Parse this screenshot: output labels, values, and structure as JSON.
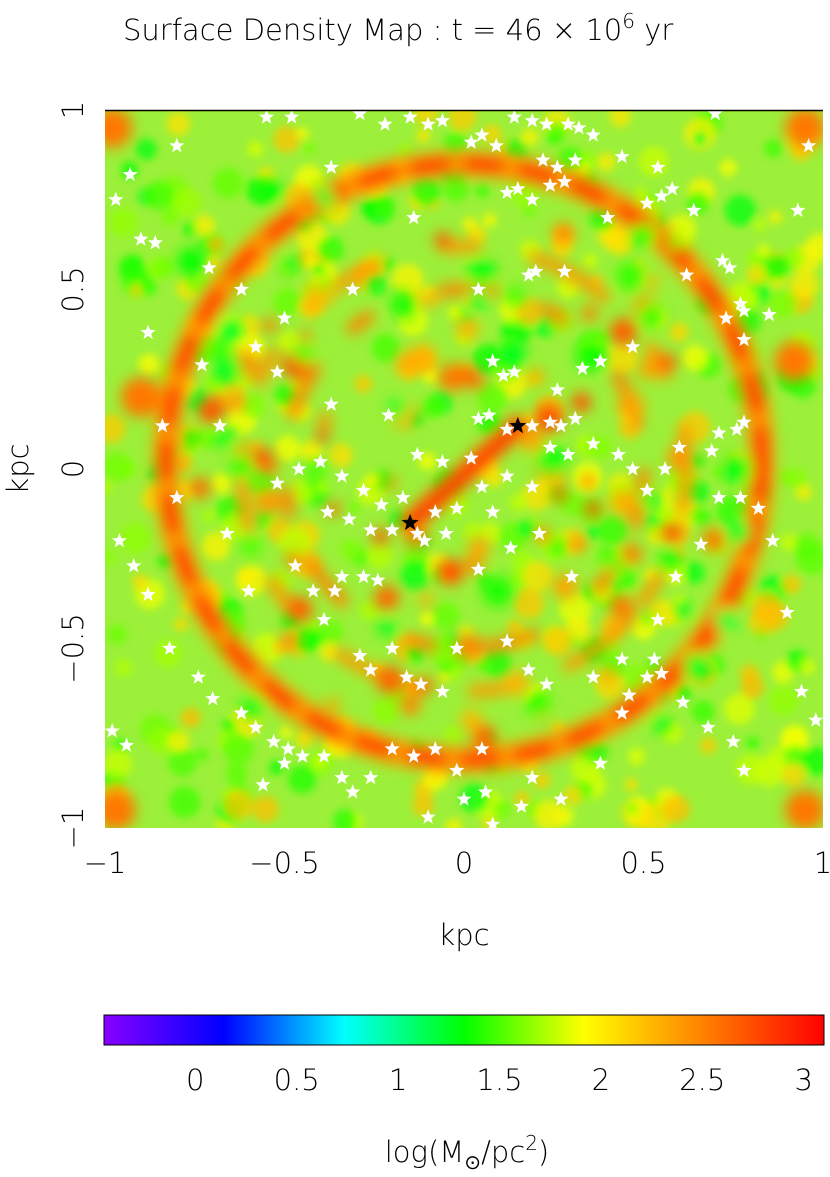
{
  "chart_data": {
    "type": "heatmap",
    "title": {
      "prefix": "Surface Density Map : t = 46 × 10",
      "exponent": "6",
      "suffix": " yr"
    },
    "xlabel": "kpc",
    "ylabel": "kpc",
    "xlim": [
      -1,
      1
    ],
    "ylim": [
      -1,
      1
    ],
    "x_ticks": [
      -1,
      -0.5,
      0,
      0.5,
      1
    ],
    "x_tick_labels": [
      "−1",
      "−0.5",
      "0",
      "0.5",
      "1"
    ],
    "y_ticks": [
      -1,
      -0.5,
      0,
      0.5,
      1
    ],
    "y_tick_labels": [
      "−1",
      "−0.5",
      "0",
      "0.5",
      "1"
    ],
    "grid": false,
    "colorbar": {
      "range": [
        -0.45,
        3.1
      ],
      "ticks": [
        0,
        0.5,
        1,
        1.5,
        2,
        2.5,
        3
      ],
      "tick_labels": [
        "0",
        "0.5",
        "1",
        "1.5",
        "2",
        "2.5",
        "3"
      ],
      "label": {
        "prefix": "log(M",
        "subscript": "⊙",
        "middle": "/pc",
        "superscript": "2",
        "suffix": ")"
      },
      "colormap": [
        "#8800ff",
        "#0000ff",
        "#00ffff",
        "#00ff00",
        "#ffff00",
        "#ff8000",
        "#ff0000"
      ]
    },
    "field_structures": {
      "background_level": 1.8,
      "outer_ring": {
        "center": [
          0,
          0.02
        ],
        "radius": 0.83,
        "peak_level": 3.0
      },
      "inner_arms": [
        {
          "center": [
            0,
            0
          ],
          "radius": 0.5,
          "level": 2.5
        },
        {
          "center": [
            0,
            0
          ],
          "radius": 0.62,
          "level": 2.4
        }
      ],
      "central_bar": {
        "from": [
          -0.15,
          -0.15
        ],
        "to": [
          0.15,
          0.12
        ],
        "level": 2.9
      }
    },
    "black_stars": [
      {
        "x": -0.15,
        "y": -0.15
      },
      {
        "x": 0.15,
        "y": 0.12
      }
    ],
    "white_stars": [
      [
        -0.93,
        0.82
      ],
      [
        -0.86,
        0.63
      ],
      [
        -0.8,
        0.9
      ],
      [
        -0.71,
        0.56
      ],
      [
        -0.62,
        0.5
      ],
      [
        -0.58,
        0.34
      ],
      [
        -0.37,
        0.84
      ],
      [
        -0.31,
        0.5
      ],
      [
        -0.29,
        0.99
      ],
      [
        -0.22,
        0.96
      ],
      [
        -0.15,
        0.98
      ],
      [
        -0.1,
        0.96
      ],
      [
        -0.06,
        0.97
      ],
      [
        0.02,
        0.91
      ],
      [
        0.05,
        0.93
      ],
      [
        0.09,
        0.9
      ],
      [
        0.14,
        0.98
      ],
      [
        0.19,
        0.97
      ],
      [
        0.23,
        0.96
      ],
      [
        0.29,
        0.96
      ],
      [
        0.32,
        0.95
      ],
      [
        0.36,
        0.93
      ],
      [
        0.44,
        0.87
      ],
      [
        0.54,
        0.84
      ],
      [
        0.22,
        0.86
      ],
      [
        0.26,
        0.84
      ],
      [
        0.31,
        0.86
      ],
      [
        0.24,
        0.79
      ],
      [
        0.28,
        0.8
      ],
      [
        0.19,
        0.75
      ],
      [
        0.12,
        0.77
      ],
      [
        0.15,
        0.78
      ],
      [
        0.51,
        0.74
      ],
      [
        0.55,
        0.76
      ],
      [
        0.58,
        0.78
      ],
      [
        0.64,
        0.72
      ],
      [
        0.72,
        0.58
      ],
      [
        0.74,
        0.56
      ],
      [
        0.77,
        0.46
      ],
      [
        0.78,
        0.44
      ],
      [
        0.62,
        0.54
      ],
      [
        0.18,
        0.54
      ],
      [
        0.2,
        0.55
      ],
      [
        0.08,
        0.3
      ],
      [
        0.11,
        0.26
      ],
      [
        0.14,
        0.27
      ],
      [
        0.04,
        0.14
      ],
      [
        0.07,
        0.15
      ],
      [
        0.12,
        0.11
      ],
      [
        0.19,
        0.12
      ],
      [
        0.24,
        0.13
      ],
      [
        0.27,
        0.12
      ],
      [
        0.31,
        0.14
      ],
      [
        0.24,
        0.06
      ],
      [
        0.29,
        0.04
      ],
      [
        0.36,
        0.07
      ],
      [
        0.43,
        0.04
      ],
      [
        0.47,
        0.0
      ],
      [
        0.51,
        -0.06
      ],
      [
        0.56,
        0.0
      ],
      [
        0.6,
        0.06
      ],
      [
        0.69,
        0.05
      ],
      [
        0.71,
        0.1
      ],
      [
        0.76,
        0.11
      ],
      [
        0.78,
        0.13
      ],
      [
        0.71,
        -0.08
      ],
      [
        0.77,
        -0.08
      ],
      [
        0.82,
        -0.11
      ],
      [
        0.66,
        -0.21
      ],
      [
        0.59,
        -0.3
      ],
      [
        0.54,
        -0.42
      ],
      [
        0.53,
        -0.53
      ],
      [
        0.55,
        -0.57
      ],
      [
        0.61,
        -0.65
      ],
      [
        0.68,
        -0.72
      ],
      [
        0.75,
        -0.76
      ],
      [
        0.78,
        -0.84
      ],
      [
        0.51,
        -0.58
      ],
      [
        0.46,
        -0.63
      ],
      [
        0.44,
        -0.68
      ],
      [
        0.38,
        -0.82
      ],
      [
        0.27,
        -0.92
      ],
      [
        0.19,
        -0.86
      ],
      [
        0.16,
        -0.94
      ],
      [
        0.06,
        -0.9
      ],
      [
        0.0,
        -0.92
      ],
      [
        -0.02,
        -0.84
      ],
      [
        -0.08,
        -0.78
      ],
      [
        -0.14,
        -0.8
      ],
      [
        -0.2,
        -0.78
      ],
      [
        -0.26,
        -0.86
      ],
      [
        -0.31,
        -0.9
      ],
      [
        -0.34,
        -0.86
      ],
      [
        -0.39,
        -0.8
      ],
      [
        -0.45,
        -0.8
      ],
      [
        -0.49,
        -0.78
      ],
      [
        -0.53,
        -0.76
      ],
      [
        -0.58,
        -0.72
      ],
      [
        -0.62,
        -0.68
      ],
      [
        -0.7,
        -0.64
      ],
      [
        -0.74,
        -0.58
      ],
      [
        -0.82,
        -0.5
      ],
      [
        -0.88,
        -0.35
      ],
      [
        -0.92,
        -0.27
      ],
      [
        -0.96,
        -0.2
      ],
      [
        -0.98,
        -0.73
      ],
      [
        -0.94,
        -0.77
      ],
      [
        -0.56,
        -0.88
      ],
      [
        -0.5,
        -0.82
      ],
      [
        -0.6,
        -0.34
      ],
      [
        -0.47,
        -0.27
      ],
      [
        -0.42,
        -0.34
      ],
      [
        -0.39,
        -0.42
      ],
      [
        -0.29,
        -0.52
      ],
      [
        -0.26,
        -0.56
      ],
      [
        -0.2,
        -0.5
      ],
      [
        -0.16,
        -0.58
      ],
      [
        -0.12,
        -0.6
      ],
      [
        -0.06,
        -0.62
      ],
      [
        -0.02,
        -0.5
      ],
      [
        0.12,
        -0.48
      ],
      [
        0.18,
        -0.56
      ],
      [
        0.23,
        -0.6
      ],
      [
        0.36,
        -0.58
      ],
      [
        0.44,
        -0.53
      ],
      [
        0.04,
        -0.28
      ],
      [
        0.13,
        -0.22
      ],
      [
        0.21,
        -0.18
      ],
      [
        0.3,
        -0.3
      ],
      [
        -0.13,
        -0.18
      ],
      [
        -0.2,
        -0.17
      ],
      [
        -0.26,
        -0.17
      ],
      [
        -0.32,
        -0.14
      ],
      [
        -0.38,
        -0.12
      ],
      [
        -0.28,
        -0.06
      ],
      [
        -0.34,
        -0.02
      ],
      [
        -0.4,
        0.02
      ],
      [
        -0.46,
        0.0
      ],
      [
        -0.52,
        -0.04
      ],
      [
        -0.37,
        0.18
      ],
      [
        -0.21,
        0.15
      ],
      [
        -0.13,
        0.04
      ],
      [
        -0.06,
        0.02
      ],
      [
        0.02,
        0.03
      ],
      [
        0.05,
        -0.05
      ],
      [
        0.08,
        -0.12
      ],
      [
        -0.02,
        -0.11
      ],
      [
        -0.08,
        -0.12
      ],
      [
        -0.05,
        -0.18
      ],
      [
        -0.11,
        -0.2
      ],
      [
        -0.17,
        -0.08
      ],
      [
        -0.23,
        -0.1
      ],
      [
        0.12,
        -0.02
      ],
      [
        0.19,
        -0.05
      ],
      [
        -0.34,
        -0.3
      ],
      [
        -0.28,
        -0.3
      ],
      [
        -0.24,
        -0.31
      ],
      [
        -0.36,
        -0.34
      ],
      [
        -0.97,
        0.75
      ],
      [
        -0.9,
        0.64
      ],
      [
        -0.88,
        0.38
      ],
      [
        -0.84,
        0.12
      ],
      [
        -0.8,
        -0.08
      ],
      [
        -0.73,
        0.29
      ],
      [
        -0.68,
        0.12
      ],
      [
        -0.66,
        -0.18
      ],
      [
        -0.52,
        0.27
      ],
      [
        -0.5,
        0.42
      ],
      [
        -0.14,
        0.7
      ],
      [
        0.04,
        0.5
      ],
      [
        0.28,
        0.55
      ],
      [
        0.4,
        0.7
      ],
      [
        0.47,
        0.34
      ],
      [
        0.38,
        0.3
      ],
      [
        0.33,
        0.28
      ],
      [
        0.26,
        0.22
      ],
      [
        0.96,
        0.9
      ],
      [
        0.93,
        0.72
      ],
      [
        0.98,
        -0.7
      ],
      [
        0.94,
        -0.62
      ],
      [
        0.9,
        -0.4
      ],
      [
        0.86,
        -0.2
      ],
      [
        0.78,
        0.36
      ],
      [
        0.73,
        0.42
      ],
      [
        0.05,
        -0.78
      ],
      [
        -0.1,
        -0.97
      ],
      [
        0.08,
        -0.99
      ],
      [
        0.7,
        0.99
      ],
      [
        -0.55,
        0.98
      ],
      [
        -0.48,
        0.98
      ],
      [
        0.85,
        0.43
      ]
    ]
  }
}
